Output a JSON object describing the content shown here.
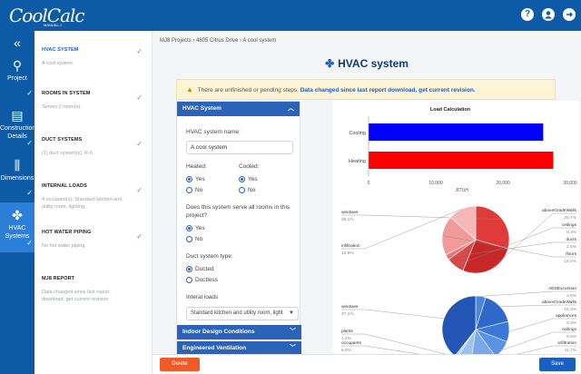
{
  "app": {
    "logo_text": "CoolCalc",
    "logo_sub": "MANUAL J"
  },
  "topbar": {
    "icons": [
      "help-icon",
      "user-icon",
      "logout-icon"
    ],
    "help_glyph": "?"
  },
  "rail": {
    "collapse_glyph": "«",
    "items": [
      {
        "label": "Project",
        "icon": "location-pin-icon",
        "glyph": "⚲"
      },
      {
        "label": "Construction Details",
        "icon": "list-icon",
        "glyph": "▤"
      },
      {
        "label": "Dimensions",
        "icon": "dimensions-icon",
        "glyph": "⫼"
      },
      {
        "label": "HVAC Systems",
        "icon": "fan-icon",
        "glyph": "✤"
      }
    ]
  },
  "steps": [
    {
      "title": "HVAC SYSTEM",
      "desc": "A cool system",
      "done": true
    },
    {
      "title": "ROOMS IN SYSTEM",
      "desc": "Serves 2 room(s).",
      "done": true
    },
    {
      "title": "DUCT SYSTEMS",
      "desc": "(1) duct system(s), R-6.",
      "done": true
    },
    {
      "title": "INTERNAL LOADS",
      "desc": "4 occupant(s), Standard kitchen and utility room, lighting.",
      "done": true
    },
    {
      "title": "HOT WATER PIPING",
      "desc": "No hot water piping.",
      "done": true
    },
    {
      "title": "MJ8 REPORT",
      "desc": "Data changed since last report download, get current revision.",
      "done": false
    }
  ],
  "breadcrumb": "MJ8 Projects  ›  4805 Citrus Drive  ›  A cool system",
  "page_title": "HVAC system",
  "alert": {
    "text": "There are unfinished or pending steps.",
    "strong": "Data changed since last report download, get current revision."
  },
  "form": {
    "header": "HVAC System",
    "name_label": "HVAC system name:",
    "name_value": "A cool system",
    "heated_label": "Heated:",
    "cooled_label": "Cooled:",
    "yes": "Yes",
    "no": "No",
    "serve_all_label": "Does this system serve all rooms in this project?",
    "duct_type_label": "Duct system type:",
    "ducted": "Ducted",
    "ductless": "Ductless",
    "internal_loads_label": "Interal loads",
    "internal_loads_value": "Standard kitchen and utility room, light",
    "section_indoor": "Indoor Design Conditions",
    "section_ventilation": "Engineered Ventilation"
  },
  "chart_data": [
    {
      "type": "bar",
      "title": "Load Calculation",
      "orientation": "horizontal",
      "categories": [
        "Cooling",
        "Heating"
      ],
      "values": [
        26000,
        27500
      ],
      "colors": [
        "#0000ff",
        "#ff0000"
      ],
      "xlabel": "BTUH",
      "xlim": [
        0,
        30000
      ],
      "ticks": [
        "0",
        "10,000",
        "20,000",
        "30,000"
      ]
    },
    {
      "type": "pie",
      "labels": [
        "windows",
        "aboveGradeWalls",
        "ceilings",
        "ducts",
        "floors",
        "infiltration"
      ],
      "values": [
        28.1,
        25.7,
        8.3,
        2.5,
        18.2,
        12.9
      ],
      "value_labels": [
        "28.1%",
        "25.7%",
        "8.3%",
        "2.5%",
        "18.2%",
        "12.9%"
      ],
      "colors": [
        "#e03a3a",
        "#c62828",
        "#d84848",
        "#ef7474",
        "#f29a9a",
        "#f4b8b8"
      ]
    },
    {
      "type": "pie",
      "labels": [
        "AEDExcursion",
        "aboveGradeWalls",
        "appliances",
        "ceilings",
        "infiltration",
        "occupants",
        "plants",
        "windows"
      ],
      "values": [
        4.6,
        15.3,
        9.2,
        8.5,
        11.7,
        6.6,
        1.2,
        37.1
      ],
      "value_labels": [
        "4.6%",
        "15.3%",
        "9.2%",
        "8.5%",
        "11.7%",
        "6.6%",
        "1.2%",
        "37.1%"
      ],
      "colors": [
        "#4a86e0",
        "#2f68c8",
        "#3c78d8",
        "#5a92e4",
        "#7aa8ea",
        "#9cc0f0",
        "#b7d2f5",
        "#2356b4"
      ]
    }
  ],
  "footer": {
    "delete_label": "Delete",
    "save_label": "Save"
  }
}
